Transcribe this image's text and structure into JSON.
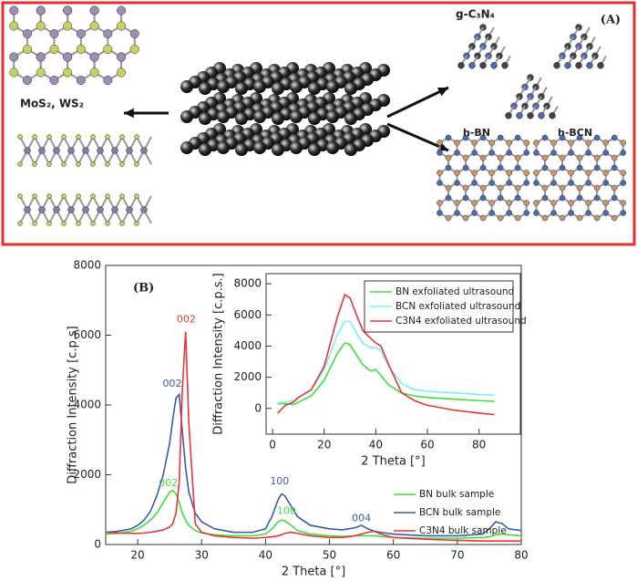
{
  "panel_a": {
    "label": "(A)",
    "texts": [
      "MoS₂, WS₂",
      "g-C₃N₄",
      "h-BN",
      "h-BCN"
    ]
  },
  "chart_data": [
    {
      "type": "line",
      "panel_label": "(B)",
      "xlabel": "2 Theta [°]",
      "ylabel": "Diffraction Intensity [c.p.s]",
      "xlim": [
        15,
        80
      ],
      "ylim": [
        0,
        8000
      ],
      "xticks": [
        20,
        30,
        40,
        50,
        60,
        70,
        80
      ],
      "yticks": [
        0,
        2000,
        4000,
        6000,
        8000
      ],
      "legend": "lower right",
      "x": [
        15,
        17,
        19,
        20,
        21,
        22,
        23,
        24,
        25,
        25.5,
        26,
        26.5,
        27,
        27.5,
        28,
        29,
        30,
        32,
        35,
        38,
        40,
        41,
        42,
        42.5,
        43,
        44,
        45,
        47,
        50,
        52,
        54,
        55,
        56,
        57,
        58,
        60,
        65,
        70,
        74,
        75,
        76,
        77,
        78,
        80
      ],
      "series": [
        {
          "name": "BN bulk sample",
          "color": "#3ee03e",
          "values": [
            300,
            320,
            380,
            450,
            560,
            700,
            900,
            1200,
            1500,
            1550,
            1450,
            1200,
            900,
            700,
            550,
            400,
            330,
            280,
            250,
            250,
            300,
            450,
            650,
            700,
            680,
            550,
            400,
            300,
            250,
            230,
            250,
            250,
            250,
            250,
            230,
            200,
            180,
            180,
            200,
            220,
            280,
            300,
            280,
            250
          ]
        },
        {
          "name": "BCN bulk sample",
          "color": "#3a5ca8",
          "values": [
            350,
            380,
            450,
            550,
            700,
            950,
            1400,
            2000,
            2900,
            3600,
            4200,
            4300,
            3200,
            2200,
            1500,
            900,
            650,
            450,
            350,
            350,
            450,
            800,
            1300,
            1450,
            1400,
            1100,
            800,
            550,
            450,
            420,
            480,
            550,
            450,
            380,
            350,
            300,
            250,
            250,
            300,
            450,
            650,
            600,
            450,
            400
          ]
        },
        {
          "name": "C3N4 bulk sample",
          "color": "#e8343a",
          "values": [
            350,
            330,
            320,
            320,
            330,
            350,
            380,
            420,
            500,
            600,
            900,
            1800,
            4500,
            6100,
            3500,
            600,
            350,
            250,
            200,
            180,
            200,
            220,
            250,
            280,
            320,
            350,
            320,
            250,
            200,
            200,
            250,
            300,
            350,
            380,
            300,
            200,
            150,
            120,
            100,
            100,
            100,
            100,
            100,
            100
          ]
        }
      ],
      "annotations": [
        {
          "text": "002",
          "x": 27.6,
          "y": 6450,
          "color": "#e8343a"
        },
        {
          "text": "002",
          "x": 25.4,
          "y": 4600,
          "color": "#3a5ca8"
        },
        {
          "text": "002",
          "x": 24.8,
          "y": 1750,
          "color": "#3ee03e"
        },
        {
          "text": "100",
          "x": 42.2,
          "y": 1800,
          "color": "#3a5ca8"
        },
        {
          "text": "100",
          "x": 43.3,
          "y": 950,
          "color": "#3ee03e"
        },
        {
          "text": "004",
          "x": 55,
          "y": 750,
          "color": "#3a5ca8"
        }
      ]
    },
    {
      "type": "line",
      "xlabel": "2 Theta [°]",
      "ylabel": "Diffraction Intensity [c.p.s.]",
      "xlim": [
        -2.5,
        96
      ],
      "ylim": [
        -1650,
        8650
      ],
      "xticks": [
        0,
        20,
        40,
        60,
        80
      ],
      "yticks": [
        0,
        2000,
        4000,
        6000,
        8000
      ],
      "legend": "upper right",
      "x": [
        2,
        5,
        8,
        10,
        15,
        20,
        25,
        28,
        30,
        33,
        35,
        38,
        40,
        42,
        45,
        50,
        55,
        60,
        70,
        80,
        86
      ],
      "series": [
        {
          "name": "BN exfoliated ultrasound",
          "color": "#3ee03e",
          "values": [
            300,
            300,
            250,
            400,
            800,
            1800,
            3500,
            4200,
            4100,
            3300,
            2800,
            2400,
            2500,
            2100,
            1500,
            1000,
            800,
            700,
            600,
            500,
            450
          ]
        },
        {
          "name": "BCN exfoliated ultrasound",
          "color": "#7ef0ec",
          "values": [
            350,
            400,
            500,
            700,
            1200,
            2500,
            4700,
            5600,
            5600,
            4700,
            4200,
            3900,
            3900,
            3700,
            2700,
            1600,
            1200,
            1100,
            1000,
            900,
            850
          ]
        },
        {
          "name": "C3N4 exfoliated ultrasound",
          "color": "#e8343a",
          "values": [
            -300,
            200,
            400,
            700,
            1200,
            2700,
            5800,
            7300,
            7100,
            5800,
            5000,
            4500,
            4200,
            4000,
            2800,
            1000,
            500,
            200,
            -100,
            -300,
            -400
          ]
        }
      ]
    }
  ]
}
